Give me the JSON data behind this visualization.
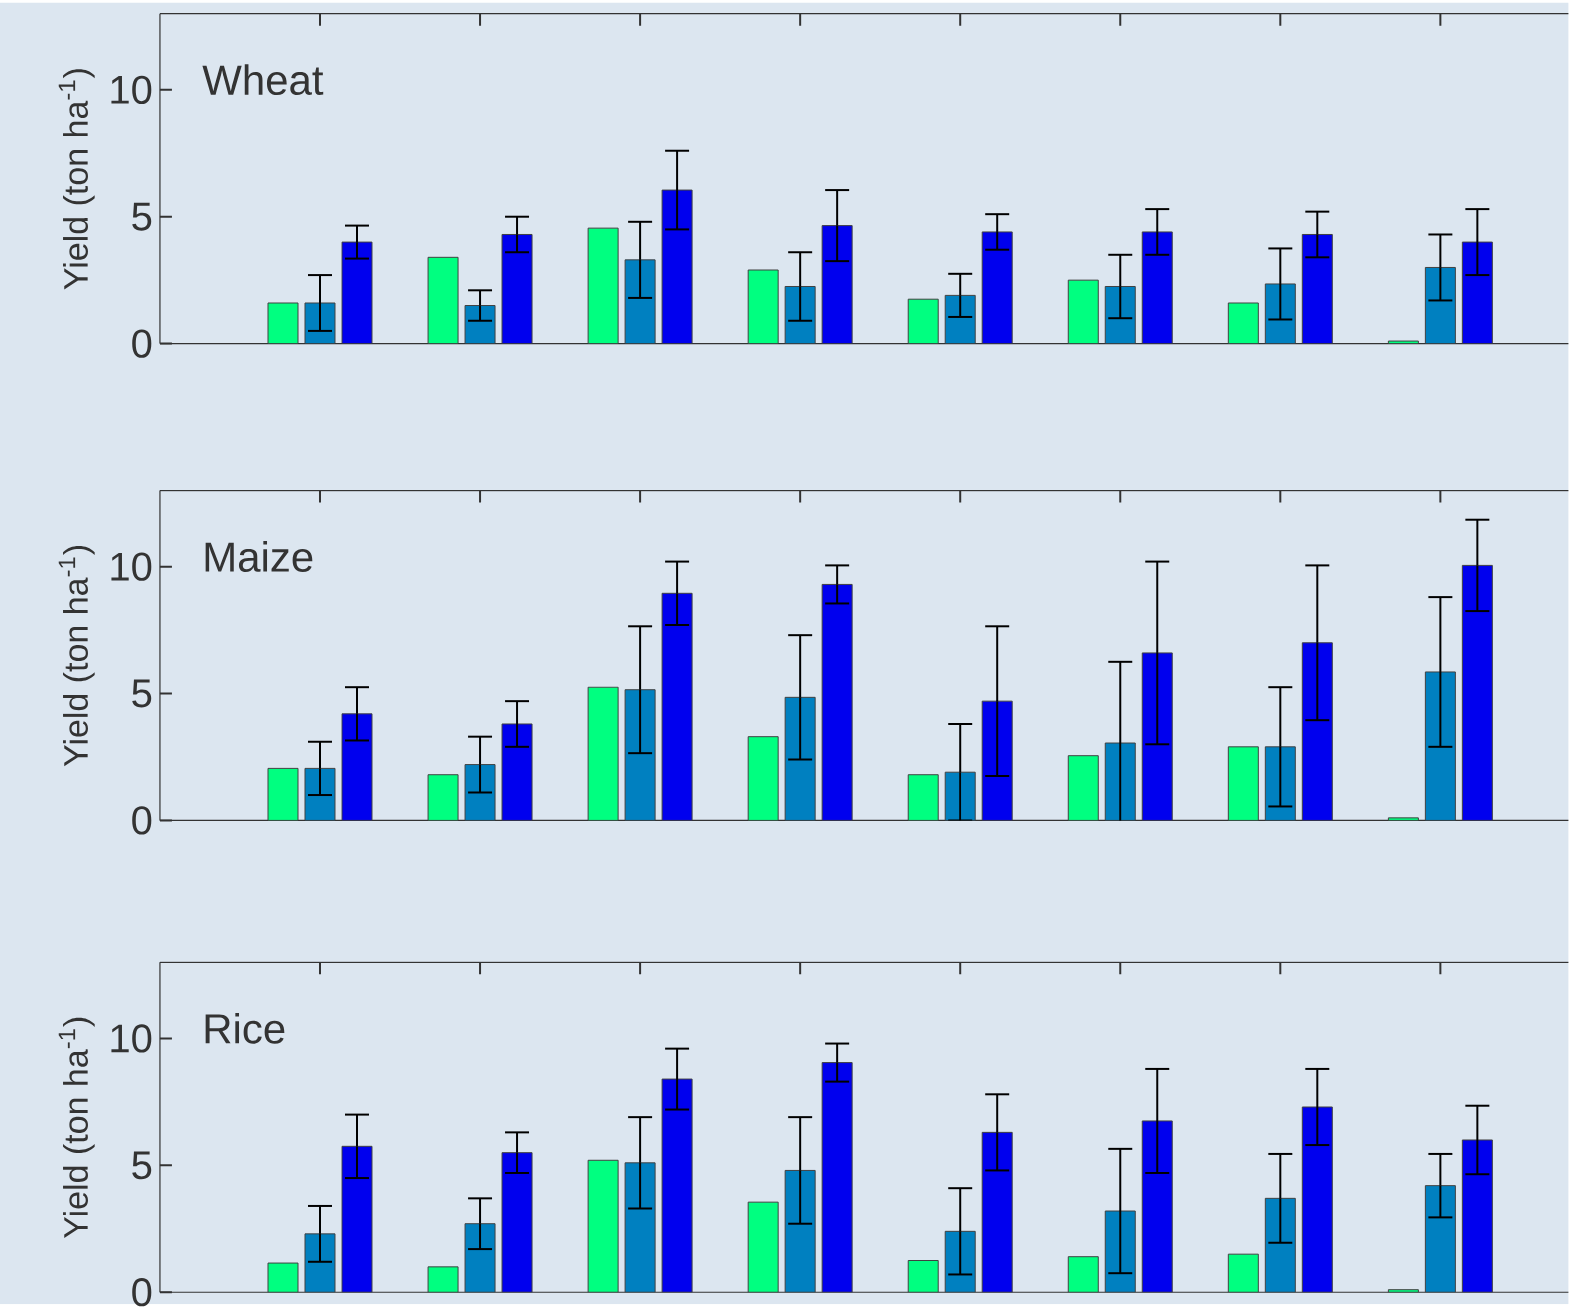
{
  "chart_data": [
    {
      "type": "bar",
      "title": "Wheat",
      "ylabel": "Yield (ton ha$^{-1}$)",
      "categories": [
        null,
        null,
        null,
        null,
        null,
        null,
        null,
        null
      ],
      "ylim": [
        0,
        13
      ],
      "yticks": [
        0,
        5,
        10
      ],
      "tick_labels": "y",
      "series": [
        {
          "color": "#00ff80",
          "values": [
            1.6,
            3.4,
            4.55,
            2.9,
            1.75,
            2.5,
            1.6,
            0.1
          ]
        },
        {
          "color": "#0080c0",
          "values": [
            1.6,
            1.5,
            3.3,
            2.25,
            1.9,
            2.25,
            2.35,
            3.0
          ],
          "errors": [
            1.1,
            0.6,
            1.5,
            1.35,
            0.85,
            1.25,
            1.4,
            1.3
          ]
        },
        {
          "color": "#0000ee",
          "values": [
            4.0,
            4.3,
            6.05,
            4.65,
            4.4,
            4.4,
            4.3,
            4.0
          ],
          "errors": [
            0.65,
            0.7,
            1.55,
            1.4,
            0.7,
            0.9,
            0.9,
            1.3
          ]
        }
      ]
    },
    {
      "type": "bar",
      "title": "Maize",
      "ylabel": "Yield (ton ha$^{-1}$)",
      "categories": [
        null,
        null,
        null,
        null,
        null,
        null,
        null,
        null
      ],
      "ylim": [
        0,
        13
      ],
      "yticks": [
        0,
        5,
        10
      ],
      "tick_labels": "y",
      "series": [
        {
          "color": "#00ff80",
          "values": [
            2.05,
            1.8,
            5.25,
            3.3,
            1.8,
            2.55,
            2.9,
            0.1
          ]
        },
        {
          "color": "#0080c0",
          "values": [
            2.05,
            2.2,
            5.15,
            4.85,
            1.9,
            3.05,
            2.9,
            5.85
          ],
          "errors": [
            1.05,
            1.1,
            2.5,
            2.45,
            1.9,
            3.2,
            2.35,
            2.95
          ]
        },
        {
          "color": "#0000ee",
          "values": [
            4.2,
            3.8,
            8.95,
            9.3,
            4.7,
            6.6,
            7.0,
            10.05
          ],
          "errors": [
            1.05,
            0.9,
            1.25,
            0.75,
            2.95,
            3.6,
            3.05,
            1.8
          ]
        }
      ]
    },
    {
      "type": "bar",
      "title": "Rice",
      "ylabel": "Yield (ton ha$^{-1}$)",
      "categories": [
        null,
        null,
        null,
        null,
        null,
        null,
        null,
        null
      ],
      "ylim": [
        0,
        13
      ],
      "yticks": [
        0,
        5,
        10
      ],
      "tick_labels": "y",
      "series": [
        {
          "color": "#00ff80",
          "values": [
            1.15,
            1.0,
            5.2,
            3.55,
            1.25,
            1.4,
            1.5,
            0.1
          ]
        },
        {
          "color": "#0080c0",
          "values": [
            2.3,
            2.7,
            5.1,
            4.8,
            2.4,
            3.2,
            3.7,
            4.2
          ],
          "errors": [
            1.1,
            1.0,
            1.8,
            2.1,
            1.7,
            2.45,
            1.75,
            1.25
          ]
        },
        {
          "color": "#0000ee",
          "values": [
            5.75,
            5.5,
            8.4,
            9.05,
            6.3,
            6.75,
            7.3,
            6.0
          ],
          "errors": [
            1.25,
            0.8,
            1.2,
            0.75,
            1.5,
            2.05,
            1.5,
            1.35
          ]
        }
      ]
    }
  ]
}
